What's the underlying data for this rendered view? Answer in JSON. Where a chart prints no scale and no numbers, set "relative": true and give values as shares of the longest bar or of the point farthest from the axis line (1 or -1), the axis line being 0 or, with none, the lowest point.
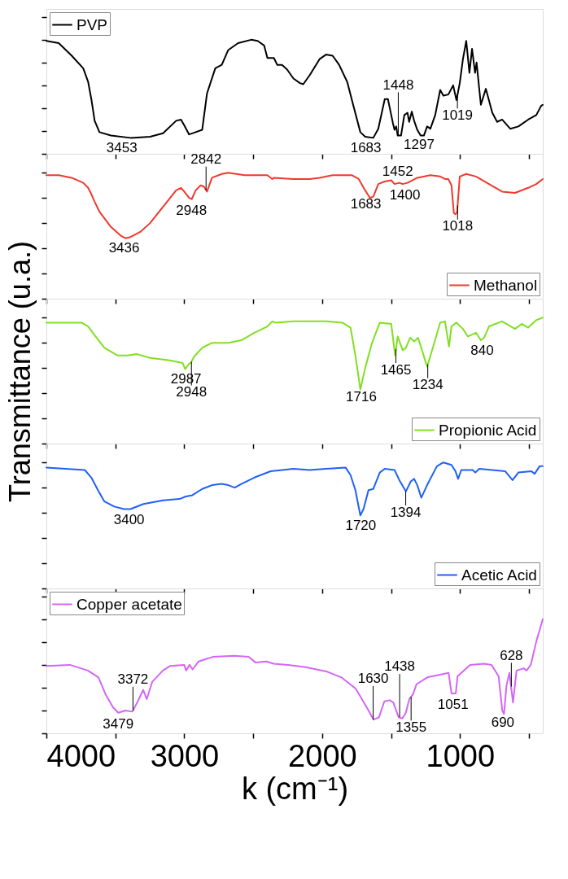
{
  "chart_data": [
    {
      "type": "line",
      "relative": true,
      "xlim": [
        4000,
        400
      ],
      "xticks": [
        4000,
        {
          "value": 3500,
          "label": null
        },
        3000,
        {
          "value": 2500,
          "label": null
        },
        2000,
        {
          "value": 1500,
          "label": null
        },
        1000,
        {
          "value": 500,
          "label": null
        }
      ],
      "tick_labels": false,
      "legend": "top left",
      "x": [
        4000,
        3910,
        3816,
        3733,
        3697,
        3674,
        3650,
        3615,
        3532,
        3390,
        3248,
        3154,
        3059,
        3024,
        3000,
        2965,
        2917,
        2870,
        2835,
        2775,
        2728,
        2681,
        2610,
        2515,
        2468,
        2421,
        2397,
        2350,
        2326,
        2291,
        2255,
        2208,
        2161,
        2137,
        2090,
        2019,
        1972,
        1924,
        1877,
        1818,
        1771,
        1723,
        1688,
        1629,
        1593,
        1546,
        1523,
        1499,
        1487,
        1475,
        1463,
        1452,
        1428,
        1404,
        1381,
        1369,
        1350,
        1333,
        1310,
        1286,
        1262,
        1239,
        1215,
        1180,
        1144,
        1121,
        1085,
        1050,
        1026,
        1002,
        979,
        955,
        932,
        913,
        891,
        880,
        849,
        813,
        766,
        731,
        695,
        636,
        577,
        506,
        447,
        412,
        400
      ],
      "series": [
        {
          "name": "PVP",
          "color": "#000000",
          "values": [
            0.99,
            0.97,
            0.86,
            0.75,
            0.63,
            0.48,
            0.29,
            0.19,
            0.16,
            0.14,
            0.15,
            0.18,
            0.29,
            0.3,
            0.25,
            0.17,
            0.19,
            0.21,
            0.53,
            0.75,
            0.78,
            0.91,
            0.97,
            1.0,
            0.99,
            0.95,
            0.84,
            0.84,
            0.78,
            0.78,
            0.74,
            0.66,
            0.62,
            0.61,
            0.69,
            0.83,
            0.87,
            0.86,
            0.78,
            0.63,
            0.41,
            0.19,
            0.15,
            0.14,
            0.22,
            0.48,
            0.48,
            0.34,
            0.27,
            0.21,
            0.24,
            0.16,
            0.16,
            0.34,
            0.36,
            0.28,
            0.37,
            0.29,
            0.21,
            0.16,
            0.16,
            0.24,
            0.22,
            0.34,
            0.56,
            0.51,
            0.52,
            0.6,
            0.47,
            0.62,
            0.83,
            0.99,
            0.71,
            0.92,
            0.71,
            0.8,
            0.43,
            0.57,
            0.36,
            0.28,
            0.3,
            0.22,
            0.24,
            0.3,
            0.34,
            0.42,
            0.43
          ]
        }
      ],
      "annotations": [
        {
          "text": "3453",
          "x": 3453,
          "y": 0.15
        },
        {
          "text": "1683",
          "x": 1683,
          "y": 0.15
        },
        {
          "text": "1448",
          "x": 1448,
          "y": 0.16
        },
        {
          "text": "1297",
          "x": 1297,
          "y": 0.18
        },
        {
          "text": "1019",
          "x": 1019,
          "y": 0.52
        }
      ]
    },
    {
      "type": "line",
      "relative": true,
      "xlim": [
        4000,
        400
      ],
      "xticks": [
        4000,
        {
          "value": 3500,
          "label": null
        },
        3000,
        {
          "value": 2500,
          "label": null
        },
        2000,
        {
          "value": 1500,
          "label": null
        },
        1000,
        {
          "value": 500,
          "label": null
        }
      ],
      "tick_labels": false,
      "legend": "bottom right",
      "x": [
        4000,
        3910,
        3816,
        3733,
        3697,
        3674,
        3650,
        3615,
        3532,
        3461,
        3426,
        3390,
        3319,
        3248,
        3154,
        3059,
        3024,
        3000,
        2965,
        2946,
        2917,
        2882,
        2858,
        2835,
        2799,
        2728,
        2681,
        2563,
        2397,
        2362,
        2350,
        2208,
        2090,
        2019,
        1924,
        1783,
        1735,
        1688,
        1653,
        1629,
        1593,
        1546,
        1499,
        1475,
        1440,
        1416,
        1381,
        1310,
        1215,
        1144,
        1109,
        1085,
        1062,
        1045,
        1033,
        1021,
        1002,
        955,
        884,
        790,
        695,
        601,
        506,
        447,
        400
      ],
      "series": [
        {
          "name": "Methanol",
          "color": "#ee3a2e",
          "values": [
            0.98,
            0.98,
            0.96,
            0.92,
            0.88,
            0.83,
            0.77,
            0.69,
            0.57,
            0.5,
            0.48,
            0.49,
            0.53,
            0.6,
            0.73,
            0.86,
            0.88,
            0.85,
            0.8,
            0.79,
            0.86,
            0.9,
            0.89,
            0.85,
            0.96,
            0.99,
            1.0,
            0.98,
            0.98,
            0.95,
            0.96,
            0.95,
            0.95,
            0.96,
            0.98,
            0.98,
            0.95,
            0.86,
            0.8,
            0.81,
            0.91,
            0.93,
            0.94,
            0.91,
            0.92,
            0.91,
            0.92,
            0.96,
            0.98,
            0.97,
            0.95,
            0.95,
            0.9,
            0.68,
            0.67,
            0.69,
            0.97,
            0.99,
            0.97,
            0.91,
            0.85,
            0.84,
            0.88,
            0.91,
            0.95
          ]
        }
      ],
      "annotations": [
        {
          "text": "3436",
          "x": 3436,
          "y": 0.49
        },
        {
          "text": "2948",
          "x": 2948,
          "y": 0.79
        },
        {
          "text": "2842",
          "x": 2842,
          "y": 0.86
        },
        {
          "text": "1452",
          "x": 1452,
          "y": 0.92
        },
        {
          "text": "1683",
          "x": 1683,
          "y": 0.84
        },
        {
          "text": "1400",
          "x": 1400,
          "y": 0.91
        },
        {
          "text": "1018",
          "x": 1018,
          "y": 0.74
        }
      ]
    },
    {
      "type": "line",
      "relative": true,
      "ylabel": "Transmittance (u.a.)",
      "xlim": [
        4000,
        400
      ],
      "xticks": [
        4000,
        {
          "value": 3500,
          "label": null
        },
        3000,
        {
          "value": 2500,
          "label": null
        },
        2000,
        {
          "value": 1500,
          "label": null
        },
        1000,
        {
          "value": 500,
          "label": null
        }
      ],
      "tick_labels": false,
      "legend": "bottom right",
      "x": [
        4000,
        3745,
        3697,
        3650,
        3579,
        3485,
        3414,
        3343,
        3248,
        3106,
        3012,
        2993,
        2969,
        2953,
        2929,
        2870,
        2799,
        2681,
        2586,
        2492,
        2397,
        2362,
        2338,
        2208,
        1972,
        1853,
        1794,
        1759,
        1723,
        1688,
        1641,
        1582,
        1499,
        1471,
        1452,
        1416,
        1393,
        1362,
        1333,
        1305,
        1281,
        1239,
        1203,
        1144,
        1109,
        1080,
        1062,
        1026,
        979,
        943,
        884,
        849,
        825,
        790,
        695,
        601,
        553,
        506,
        447,
        400
      ],
      "series": [
        {
          "name": "Propionic Acid",
          "color": "#80e020",
          "values": [
            0.96,
            0.96,
            0.93,
            0.86,
            0.76,
            0.7,
            0.7,
            0.71,
            0.68,
            0.66,
            0.64,
            0.59,
            0.63,
            0.64,
            0.69,
            0.76,
            0.8,
            0.8,
            0.82,
            0.88,
            0.93,
            0.97,
            0.96,
            0.97,
            0.97,
            0.96,
            0.92,
            0.7,
            0.43,
            0.6,
            0.79,
            0.96,
            0.95,
            0.7,
            0.85,
            0.74,
            0.76,
            0.84,
            0.81,
            0.84,
            0.76,
            0.61,
            0.74,
            0.96,
            0.97,
            0.77,
            0.93,
            0.96,
            0.91,
            0.85,
            0.88,
            0.82,
            0.84,
            0.93,
            0.97,
            0.91,
            0.95,
            0.92,
            0.98,
            1.0
          ]
        }
      ],
      "annotations": [
        {
          "text": "2987",
          "x": 2987,
          "y": 0.6
        },
        {
          "text": "2948",
          "x": 2948,
          "y": 0.65
        },
        {
          "text": "1716",
          "x": 1716,
          "y": 0.46
        },
        {
          "text": "1465",
          "x": 1465,
          "y": 0.75
        },
        {
          "text": "1234",
          "x": 1234,
          "y": 0.63
        },
        {
          "text": "840",
          "x": 840,
          "y": 0.83
        }
      ]
    },
    {
      "type": "line",
      "relative": true,
      "xlim": [
        4000,
        400
      ],
      "xticks": [
        4000,
        {
          "value": 3500,
          "label": null
        },
        3000,
        {
          "value": 2500,
          "label": null
        },
        2000,
        {
          "value": 1500,
          "label": null
        },
        1000,
        {
          "value": 500,
          "label": null
        }
      ],
      "tick_labels": false,
      "legend": "bottom right",
      "x": [
        4000,
        3721,
        3674,
        3626,
        3579,
        3508,
        3437,
        3390,
        3296,
        3154,
        3035,
        2988,
        2941,
        2870,
        2799,
        2728,
        2681,
        2634,
        2586,
        2492,
        2374,
        2208,
        2090,
        1972,
        1830,
        1794,
        1759,
        1723,
        1700,
        1664,
        1629,
        1582,
        1546,
        1475,
        1440,
        1393,
        1357,
        1333,
        1310,
        1281,
        1239,
        1168,
        1121,
        1062,
        1033,
        1014,
        991,
        908,
        889,
        861,
        672,
        619,
        577,
        482,
        459,
        423,
        400
      ],
      "series": [
        {
          "name": "Acetic Acid",
          "color": "#2060f8",
          "values": [
            0.96,
            0.94,
            0.88,
            0.78,
            0.69,
            0.65,
            0.63,
            0.63,
            0.67,
            0.7,
            0.71,
            0.73,
            0.74,
            0.79,
            0.82,
            0.83,
            0.82,
            0.8,
            0.83,
            0.88,
            0.93,
            0.95,
            0.94,
            0.95,
            0.96,
            0.9,
            0.78,
            0.58,
            0.63,
            0.78,
            0.79,
            0.92,
            0.95,
            0.94,
            0.86,
            0.77,
            0.85,
            0.87,
            0.82,
            0.72,
            0.82,
            0.97,
            1.0,
            0.98,
            0.93,
            0.87,
            0.94,
            0.94,
            0.92,
            0.95,
            0.93,
            0.86,
            0.92,
            0.93,
            0.91,
            0.97,
            0.97
          ]
        }
      ],
      "annotations": [
        {
          "text": "3400",
          "x": 3400,
          "y": 0.63
        },
        {
          "text": "1720",
          "x": 1720,
          "y": 0.59
        },
        {
          "text": "1394",
          "x": 1394,
          "y": 0.77
        }
      ]
    },
    {
      "type": "line",
      "relative": true,
      "xlabel": "k (cm⁻¹)",
      "xlim": [
        4000,
        400
      ],
      "xticks": [
        4000,
        {
          "value": 3500,
          "label": null
        },
        3000,
        {
          "value": 2500,
          "label": null
        },
        2000,
        {
          "value": 1500,
          "label": null
        },
        1000,
        {
          "value": 500,
          "label": null
        }
      ],
      "tick_labels": "x",
      "legend": "top left",
      "x": [
        4000,
        3829,
        3699,
        3622,
        3570,
        3518,
        3479,
        3427,
        3376,
        3337,
        3298,
        3272,
        3233,
        3155,
        3104,
        3000,
        2987,
        2961,
        2940,
        2896,
        2793,
        2637,
        2533,
        2482,
        2404,
        2352,
        2248,
        2119,
        1963,
        1860,
        1756,
        1678,
        1627,
        1588,
        1549,
        1510,
        1484,
        1445,
        1419,
        1393,
        1368,
        1355,
        1342,
        1316,
        1238,
        1083,
        1062,
        1031,
        1018,
        927,
        823,
        772,
        720,
        694,
        681,
        663,
        642,
        616,
        590,
        538,
        518,
        487,
        448,
        400
      ],
      "series": [
        {
          "name": "Copper acetate",
          "color": "#d466f5",
          "values": [
            0.59,
            0.6,
            0.55,
            0.49,
            0.34,
            0.23,
            0.18,
            0.2,
            0.19,
            0.28,
            0.38,
            0.3,
            0.45,
            0.55,
            0.59,
            0.6,
            0.55,
            0.6,
            0.56,
            0.63,
            0.67,
            0.68,
            0.67,
            0.62,
            0.63,
            0.61,
            0.6,
            0.58,
            0.54,
            0.49,
            0.39,
            0.23,
            0.12,
            0.14,
            0.28,
            0.29,
            0.27,
            0.14,
            0.13,
            0.18,
            0.3,
            0.32,
            0.34,
            0.43,
            0.49,
            0.53,
            0.35,
            0.35,
            0.5,
            0.6,
            0.61,
            0.6,
            0.5,
            0.2,
            0.17,
            0.42,
            0.53,
            0.27,
            0.55,
            0.57,
            0.55,
            0.6,
            0.8,
            1.0
          ]
        }
      ],
      "annotations": [
        {
          "text": "3479",
          "x": 3479,
          "y": 0.18
        },
        {
          "text": "3372",
          "x": 3372,
          "y": 0.2
        },
        {
          "text": "1630",
          "x": 1630,
          "y": 0.12
        },
        {
          "text": "1438",
          "x": 1438,
          "y": 0.14
        },
        {
          "text": "1355",
          "x": 1355,
          "y": 0.32
        },
        {
          "text": "1051",
          "x": 1051,
          "y": 0.35
        },
        {
          "text": "690",
          "x": 690,
          "y": 0.19
        },
        {
          "text": "628",
          "x": 628,
          "y": 0.41
        }
      ]
    }
  ]
}
